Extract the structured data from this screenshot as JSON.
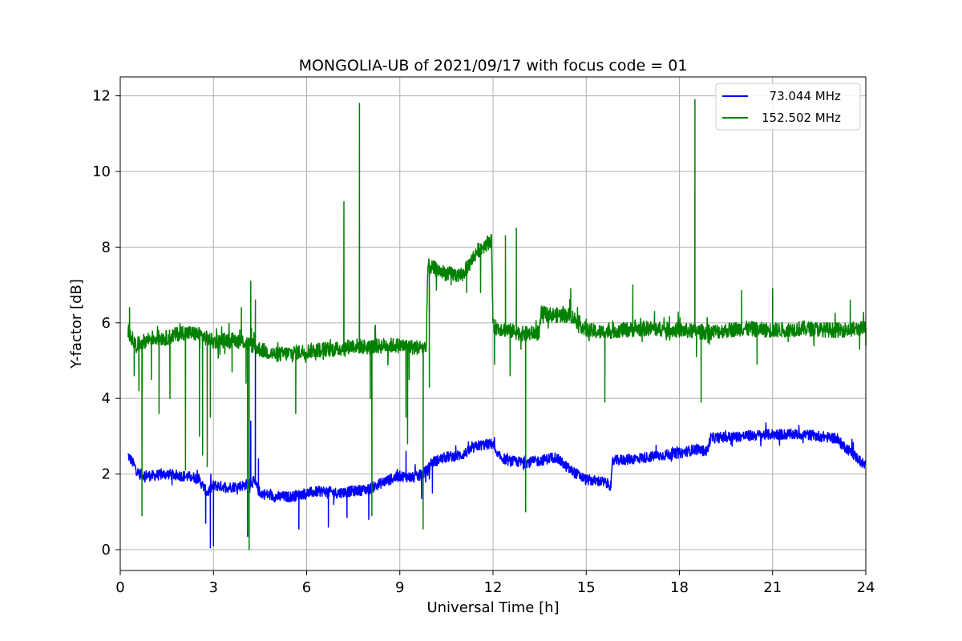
{
  "chart_data": {
    "type": "line",
    "title": "MONGOLIA-UB of 2021/09/17 with focus code = 01",
    "xlabel": "Universal Time [h]",
    "ylabel": "Y-factor [dB]",
    "xlim": [
      0,
      24
    ],
    "ylim": [
      -0.55,
      12.5
    ],
    "xticks": [
      0,
      3,
      6,
      9,
      12,
      15,
      18,
      21,
      24
    ],
    "yticks": [
      0,
      2,
      4,
      6,
      8,
      10,
      12
    ],
    "grid": true,
    "legend_position": "top-right",
    "series": [
      {
        "name": "  73.044 MHz",
        "color": "#0000ff",
        "baseline": [
          [
            0.25,
            2.5
          ],
          [
            0.4,
            2.3
          ],
          [
            0.6,
            2.0
          ],
          [
            1.0,
            1.95
          ],
          [
            1.5,
            2.0
          ],
          [
            2.0,
            1.95
          ],
          [
            2.5,
            1.9
          ],
          [
            2.8,
            1.5
          ],
          [
            3.0,
            1.7
          ],
          [
            3.5,
            1.65
          ],
          [
            4.0,
            1.7
          ],
          [
            4.3,
            1.8
          ],
          [
            4.5,
            1.5
          ],
          [
            5.0,
            1.4
          ],
          [
            5.5,
            1.4
          ],
          [
            6.0,
            1.5
          ],
          [
            6.5,
            1.55
          ],
          [
            7.0,
            1.5
          ],
          [
            7.5,
            1.55
          ],
          [
            8.0,
            1.6
          ],
          [
            8.5,
            1.8
          ],
          [
            9.0,
            1.95
          ],
          [
            9.5,
            1.9
          ],
          [
            9.9,
            2.1
          ],
          [
            10.0,
            2.3
          ],
          [
            10.5,
            2.45
          ],
          [
            11.0,
            2.5
          ],
          [
            11.5,
            2.75
          ],
          [
            12.0,
            2.8
          ],
          [
            12.1,
            2.5
          ],
          [
            12.5,
            2.35
          ],
          [
            13.0,
            2.3
          ],
          [
            13.5,
            2.35
          ],
          [
            14.0,
            2.45
          ],
          [
            14.5,
            2.1
          ],
          [
            15.0,
            1.85
          ],
          [
            15.5,
            1.8
          ],
          [
            15.8,
            1.7
          ],
          [
            15.85,
            2.35
          ],
          [
            16.5,
            2.4
          ],
          [
            17.0,
            2.45
          ],
          [
            17.5,
            2.5
          ],
          [
            18.0,
            2.55
          ],
          [
            18.5,
            2.65
          ],
          [
            18.9,
            2.6
          ],
          [
            19.0,
            2.95
          ],
          [
            20.0,
            3.0
          ],
          [
            21.0,
            3.05
          ],
          [
            22.0,
            3.05
          ],
          [
            23.0,
            2.95
          ],
          [
            23.5,
            2.6
          ],
          [
            24.0,
            2.2
          ]
        ],
        "noise": 0.14,
        "spikes": [
          [
            2.75,
            0.7
          ],
          [
            2.9,
            0.05
          ],
          [
            3.0,
            0.1
          ],
          [
            4.1,
            0.35
          ],
          [
            4.2,
            3.4
          ],
          [
            4.35,
            5.3
          ],
          [
            4.45,
            2.4
          ],
          [
            5.75,
            0.55
          ],
          [
            6.7,
            0.6
          ],
          [
            7.3,
            0.85
          ],
          [
            8.0,
            0.8
          ],
          [
            9.2,
            2.6
          ],
          [
            9.7,
            1.35
          ],
          [
            10.05,
            1.5
          ]
        ]
      },
      {
        "name": "152.502 MHz",
        "color": "#008000",
        "baseline": [
          [
            0.25,
            5.8
          ],
          [
            0.5,
            5.4
          ],
          [
            1.0,
            5.6
          ],
          [
            1.5,
            5.6
          ],
          [
            2.0,
            5.75
          ],
          [
            2.5,
            5.7
          ],
          [
            3.0,
            5.5
          ],
          [
            3.5,
            5.55
          ],
          [
            4.0,
            5.5
          ],
          [
            4.5,
            5.3
          ],
          [
            5.0,
            5.15
          ],
          [
            5.5,
            5.2
          ],
          [
            6.0,
            5.25
          ],
          [
            6.5,
            5.3
          ],
          [
            7.0,
            5.3
          ],
          [
            7.5,
            5.4
          ],
          [
            8.0,
            5.35
          ],
          [
            8.5,
            5.4
          ],
          [
            9.0,
            5.4
          ],
          [
            9.5,
            5.35
          ],
          [
            9.85,
            5.35
          ],
          [
            9.9,
            7.5
          ],
          [
            10.5,
            7.3
          ],
          [
            11.0,
            7.25
          ],
          [
            11.5,
            7.9
          ],
          [
            11.95,
            8.2
          ],
          [
            12.0,
            5.9
          ],
          [
            12.5,
            5.8
          ],
          [
            13.0,
            5.7
          ],
          [
            13.5,
            5.75
          ],
          [
            13.55,
            6.25
          ],
          [
            14.0,
            6.2
          ],
          [
            14.5,
            6.2
          ],
          [
            15.0,
            5.8
          ],
          [
            15.5,
            5.75
          ],
          [
            16.0,
            5.8
          ],
          [
            17.0,
            5.85
          ],
          [
            18.0,
            5.8
          ],
          [
            19.0,
            5.75
          ],
          [
            20.0,
            5.85
          ],
          [
            21.0,
            5.8
          ],
          [
            22.0,
            5.85
          ],
          [
            23.0,
            5.8
          ],
          [
            24.0,
            5.85
          ]
        ],
        "noise": 0.2,
        "spikes": [
          [
            0.3,
            6.4
          ],
          [
            0.45,
            4.6
          ],
          [
            0.6,
            4.2
          ],
          [
            0.7,
            0.9
          ],
          [
            1.0,
            4.5
          ],
          [
            1.25,
            3.6
          ],
          [
            1.6,
            4.0
          ],
          [
            2.1,
            2.1
          ],
          [
            2.55,
            3.0
          ],
          [
            2.65,
            2.5
          ],
          [
            2.8,
            2.2
          ],
          [
            2.9,
            3.5
          ],
          [
            3.6,
            4.7
          ],
          [
            3.9,
            6.4
          ],
          [
            4.05,
            4.4
          ],
          [
            4.1,
            0.5
          ],
          [
            4.15,
            0.0
          ],
          [
            4.2,
            7.1
          ],
          [
            4.35,
            6.6
          ],
          [
            5.65,
            3.6
          ],
          [
            7.2,
            9.2
          ],
          [
            7.7,
            11.8
          ],
          [
            8.05,
            4.0
          ],
          [
            8.1,
            0.9
          ],
          [
            8.2,
            5.9
          ],
          [
            9.2,
            3.5
          ],
          [
            9.25,
            2.8
          ],
          [
            9.3,
            4.5
          ],
          [
            9.75,
            0.55
          ],
          [
            9.95,
            4.3
          ],
          [
            10.65,
            7.0
          ],
          [
            11.15,
            6.8
          ],
          [
            11.6,
            6.8
          ],
          [
            12.05,
            4.9
          ],
          [
            12.4,
            8.3
          ],
          [
            12.55,
            4.6
          ],
          [
            12.75,
            8.5
          ],
          [
            12.9,
            5.3
          ],
          [
            13.05,
            1.0
          ],
          [
            13.4,
            5.6
          ],
          [
            14.5,
            6.9
          ],
          [
            15.0,
            6.1
          ],
          [
            15.6,
            3.9
          ],
          [
            16.5,
            7.0
          ],
          [
            16.8,
            5.5
          ],
          [
            17.2,
            6.3
          ],
          [
            18.5,
            11.9
          ],
          [
            18.55,
            5.1
          ],
          [
            18.7,
            3.9
          ],
          [
            20.0,
            6.85
          ],
          [
            20.5,
            4.9
          ],
          [
            21.0,
            6.9
          ],
          [
            21.5,
            5.5
          ],
          [
            23.5,
            6.6
          ],
          [
            23.8,
            5.3
          ],
          [
            24.0,
            5.4
          ]
        ]
      }
    ]
  }
}
